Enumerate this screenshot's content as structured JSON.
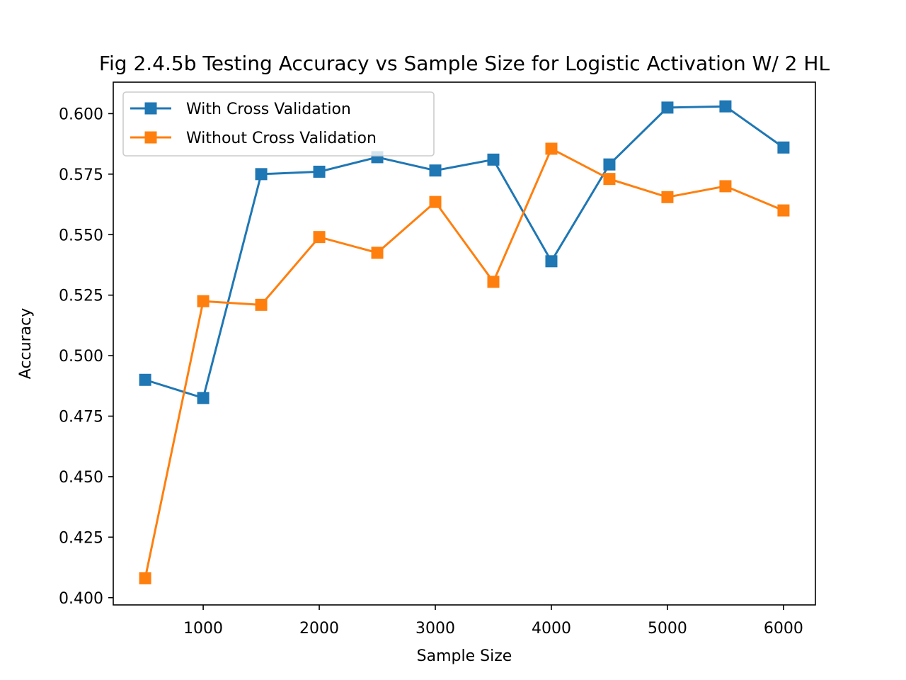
{
  "chart_data": {
    "type": "line",
    "title": "Fig 2.4.5b Testing Accuracy vs Sample Size for Logistic Activation W/ 2 HL",
    "xlabel": "Sample Size",
    "ylabel": "Accuracy",
    "xlim": [
      225,
      6275
    ],
    "ylim": [
      0.397,
      0.613
    ],
    "x_ticks": [
      1000,
      2000,
      3000,
      4000,
      5000,
      6000
    ],
    "x_tick_labels": [
      "1000",
      "2000",
      "3000",
      "4000",
      "5000",
      "6000"
    ],
    "y_ticks": [
      0.4,
      0.425,
      0.45,
      0.475,
      0.5,
      0.525,
      0.55,
      0.575,
      0.6
    ],
    "y_tick_labels": [
      "0.400",
      "0.425",
      "0.450",
      "0.475",
      "0.500",
      "0.525",
      "0.550",
      "0.575",
      "0.600"
    ],
    "grid": false,
    "legend_position": "upper left",
    "x": [
      500,
      1000,
      1500,
      2000,
      2500,
      3000,
      3500,
      4000,
      4500,
      5000,
      5500,
      6000
    ],
    "series": [
      {
        "name": "With Cross Validation",
        "color": "#1f77b4",
        "marker": "square",
        "values": [
          0.49,
          0.4825,
          0.575,
          0.576,
          0.582,
          0.5765,
          0.581,
          0.539,
          0.579,
          0.6025,
          0.603,
          0.586
        ]
      },
      {
        "name": "Without Cross Validation",
        "color": "#ff7f0e",
        "marker": "square",
        "values": [
          0.408,
          0.5225,
          0.521,
          0.549,
          0.5425,
          0.5635,
          0.5305,
          0.5855,
          0.573,
          0.5655,
          0.57,
          0.56
        ]
      }
    ]
  }
}
